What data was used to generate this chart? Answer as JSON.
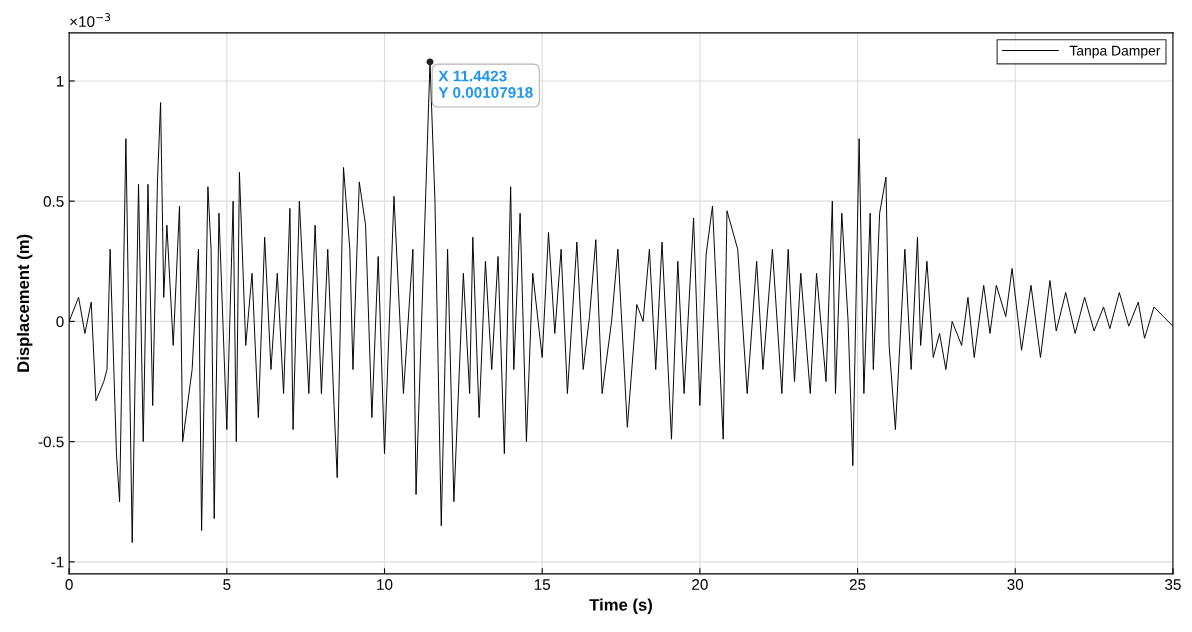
{
  "chart_data": {
    "type": "line",
    "xlabel": "Time (s)",
    "ylabel": "Displacement (m)",
    "xlim": [
      0,
      35
    ],
    "xticks": [
      0,
      5,
      10,
      15,
      20,
      25,
      30,
      35
    ],
    "ylim": [
      -1.05,
      1.2
    ],
    "yticks": [
      -1,
      -0.5,
      0,
      0.5,
      1
    ],
    "grid": true,
    "legend": "top right",
    "annotations": [
      "×10$^{−3}$",
      {
        "text": "X 11.4423\nY 0.00107918",
        "x": 11.4423,
        "y": 1.07918
      }
    ],
    "series": [
      {
        "name": "Tanpa Damper",
        "color": "#000000",
        "x": [
          0,
          0.3,
          0.5,
          0.7,
          0.85,
          1.1,
          1.2,
          1.3,
          1.5,
          1.6,
          1.8,
          2.0,
          2.2,
          2.35,
          2.5,
          2.65,
          2.8,
          2.9,
          3.0,
          3.1,
          3.3,
          3.5,
          3.6,
          3.9,
          4.1,
          4.2,
          4.4,
          4.5,
          4.6,
          4.75,
          5.0,
          5.2,
          5.3,
          5.4,
          5.6,
          5.8,
          6.0,
          6.2,
          6.4,
          6.6,
          6.8,
          7.0,
          7.1,
          7.3,
          7.6,
          7.8,
          8.0,
          8.2,
          8.4,
          8.5,
          8.7,
          8.9,
          9.0,
          9.2,
          9.4,
          9.6,
          9.8,
          10.0,
          10.3,
          10.6,
          10.9,
          11.0,
          11.4423,
          11.6,
          11.8,
          12.0,
          12.2,
          12.5,
          12.7,
          12.8,
          13.0,
          13.2,
          13.4,
          13.6,
          13.8,
          14.0,
          14.1,
          14.3,
          14.5,
          14.7,
          15.0,
          15.2,
          15.4,
          15.6,
          15.8,
          16.1,
          16.3,
          16.5,
          16.7,
          16.9,
          17.2,
          17.4,
          17.7,
          18.0,
          18.2,
          18.4,
          18.6,
          18.8,
          19.1,
          19.3,
          19.5,
          19.8,
          20.0,
          20.2,
          20.4,
          20.74,
          20.86,
          21.2,
          21.5,
          21.8,
          22.0,
          22.3,
          22.6,
          22.8,
          23.0,
          23.2,
          23.5,
          23.7,
          24.0,
          24.2,
          24.3,
          24.5,
          24.7,
          24.85,
          25.05,
          25.2,
          25.4,
          25.5,
          25.7,
          25.9,
          26.0,
          26.2,
          26.5,
          26.7,
          26.9,
          27.0,
          27.2,
          27.4,
          27.6,
          27.8,
          28.0,
          28.3,
          28.5,
          28.7,
          29.0,
          29.2,
          29.4,
          29.7,
          29.9,
          30.2,
          30.5,
          30.8,
          31.1,
          31.3,
          31.6,
          31.9,
          32.2,
          32.5,
          32.8,
          33.0,
          33.3,
          33.6,
          33.9,
          34.1,
          34.4,
          34.7,
          35.0
        ],
        "values": [
          0,
          0.1,
          -0.05,
          0.08,
          -0.33,
          -0.25,
          -0.2,
          0.3,
          -0.55,
          -0.75,
          0.76,
          -0.92,
          0.57,
          -0.5,
          0.57,
          -0.35,
          0.58,
          0.91,
          0.1,
          0.4,
          -0.1,
          0.48,
          -0.5,
          -0.2,
          0.3,
          -0.87,
          0.56,
          0.3,
          -0.82,
          0.45,
          -0.45,
          0.5,
          -0.5,
          0.62,
          -0.1,
          0.2,
          -0.4,
          0.35,
          -0.2,
          0.2,
          -0.3,
          0.47,
          -0.45,
          0.5,
          -0.3,
          0.4,
          -0.3,
          0.3,
          -0.35,
          -0.65,
          0.64,
          0.3,
          -0.2,
          0.58,
          0.4,
          -0.4,
          0.27,
          -0.55,
          0.52,
          -0.3,
          0.3,
          -0.72,
          1.07918,
          0.5,
          -0.85,
          0.3,
          -0.75,
          0.2,
          -0.3,
          0.35,
          -0.4,
          0.25,
          -0.2,
          0.27,
          -0.55,
          0.56,
          -0.2,
          0.45,
          -0.5,
          0.2,
          -0.15,
          0.37,
          -0.05,
          0.3,
          -0.3,
          0.33,
          -0.2,
          0.02,
          0.34,
          -0.3,
          0,
          0.3,
          -0.44,
          0.07,
          0,
          0.3,
          -0.2,
          0.33,
          -0.49,
          0.25,
          -0.3,
          0.43,
          -0.35,
          0.28,
          0.48,
          -0.49,
          0.46,
          0.3,
          -0.3,
          0.25,
          -0.2,
          0.3,
          -0.3,
          0.3,
          -0.25,
          0.2,
          -0.3,
          0.2,
          -0.25,
          0.5,
          -0.3,
          0.45,
          0,
          -0.6,
          0.76,
          -0.3,
          0.45,
          -0.2,
          0.45,
          0.6,
          -0.1,
          -0.45,
          0.3,
          -0.2,
          0.35,
          -0.1,
          0.25,
          -0.15,
          -0.05,
          -0.2,
          0,
          -0.1,
          0.1,
          -0.15,
          0.15,
          -0.05,
          0.15,
          0.02,
          0.22,
          -0.12,
          0.15,
          -0.15,
          0.17,
          -0.04,
          0.12,
          -0.05,
          0.1,
          -0.04,
          0.06,
          -0.03,
          0.12,
          -0.02,
          0.08,
          -0.07,
          0.06,
          0.02,
          -0.02
        ]
      }
    ]
  }
}
